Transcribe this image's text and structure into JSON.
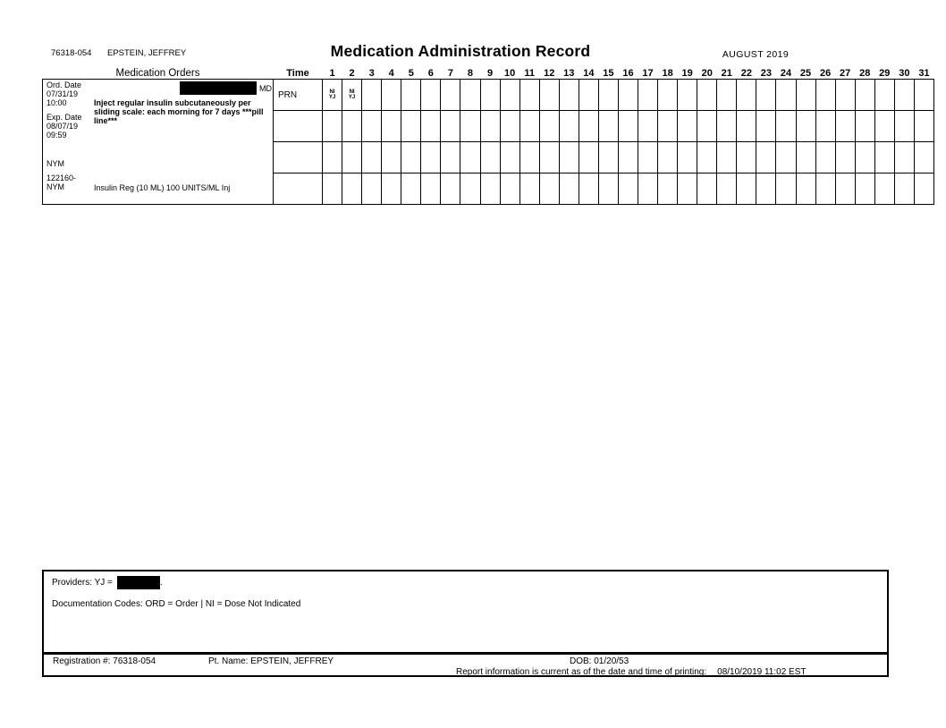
{
  "header": {
    "registration_number": "76318-054",
    "patient_name": "EPSTEIN, JEFFREY",
    "title": "Medication Administration Record",
    "month": "AUGUST 2019"
  },
  "table": {
    "orders_header": "Medication Orders",
    "time_header": "Time",
    "days": [
      1,
      2,
      3,
      4,
      5,
      6,
      7,
      8,
      9,
      10,
      11,
      12,
      13,
      14,
      15,
      16,
      17,
      18,
      19,
      20,
      21,
      22,
      23,
      24,
      25,
      26,
      27,
      28,
      29,
      30,
      31
    ],
    "order": {
      "ord_date_label": "Ord. Date",
      "ord_date": "07/31/19",
      "ord_time": "10:00",
      "prescriber_credential": "MD",
      "exp_date_label": "Exp. Date",
      "exp_date": "08/07/19",
      "exp_time": "09:59",
      "facility_code": "NYM",
      "order_number": "122160-",
      "order_number_facility": "NYM",
      "instructions": "Inject regular insulin subcutaneously per sliding scale: each morning for 7 days ***pill line***",
      "medication": "Insulin Reg (10 ML) 100 UNITS/ML Inj"
    },
    "rows": [
      {
        "time": "PRN",
        "entries": {
          "1": [
            "NI",
            "YJ"
          ],
          "2": [
            "NI",
            "YJ"
          ]
        }
      },
      {
        "time": "",
        "entries": {}
      },
      {
        "time": "",
        "entries": {}
      },
      {
        "time": "",
        "entries": {}
      }
    ]
  },
  "footer": {
    "providers_label": "Providers: YJ =",
    "providers_period": ".",
    "documentation_codes": "Documentation Codes: ORD = Order | NI = Dose Not Indicated",
    "registration_label": "Registration #:",
    "registration_value": "76318-054",
    "patient_label": "Pt. Name:",
    "patient_value": "EPSTEIN, JEFFREY",
    "dob_label": "DOB:",
    "dob_value": "01/20/53",
    "report_note": "Report information is current as of the date and time of printing:",
    "printed_at": "08/10/2019 11:02 EST"
  },
  "colors": {
    "ink": "#000000",
    "paper": "#ffffff",
    "redaction": "#000000"
  }
}
